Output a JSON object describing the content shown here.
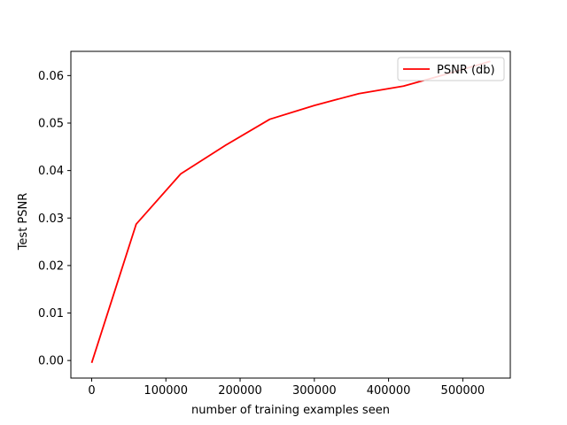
{
  "chart_data": {
    "type": "line",
    "xlabel": "number of training examples seen",
    "ylabel": "Test PSNR",
    "xlim": [
      -28000,
      564000
    ],
    "ylim": [
      -0.0037,
      0.0651
    ],
    "x_ticks": [
      0,
      100000,
      200000,
      300000,
      400000,
      500000
    ],
    "x_tick_labels": [
      "0",
      "100000",
      "200000",
      "300000",
      "400000",
      "500000"
    ],
    "y_ticks": [
      0.0,
      0.01,
      0.02,
      0.03,
      0.04,
      0.05,
      0.06
    ],
    "y_tick_labels": [
      "0.00",
      "0.01",
      "0.02",
      "0.03",
      "0.04",
      "0.05",
      "0.06"
    ],
    "grid": false,
    "legend_position": "top-right",
    "series": [
      {
        "name": "PSNR (db)",
        "color": "#ff0000",
        "x": [
          0,
          60000,
          120000,
          180000,
          240000,
          300000,
          360000,
          420000,
          480000,
          537000
        ],
        "y": [
          -0.0005,
          0.0287,
          0.0393,
          0.0453,
          0.0508,
          0.0537,
          0.0562,
          0.0578,
          0.0604,
          0.063
        ]
      }
    ]
  }
}
